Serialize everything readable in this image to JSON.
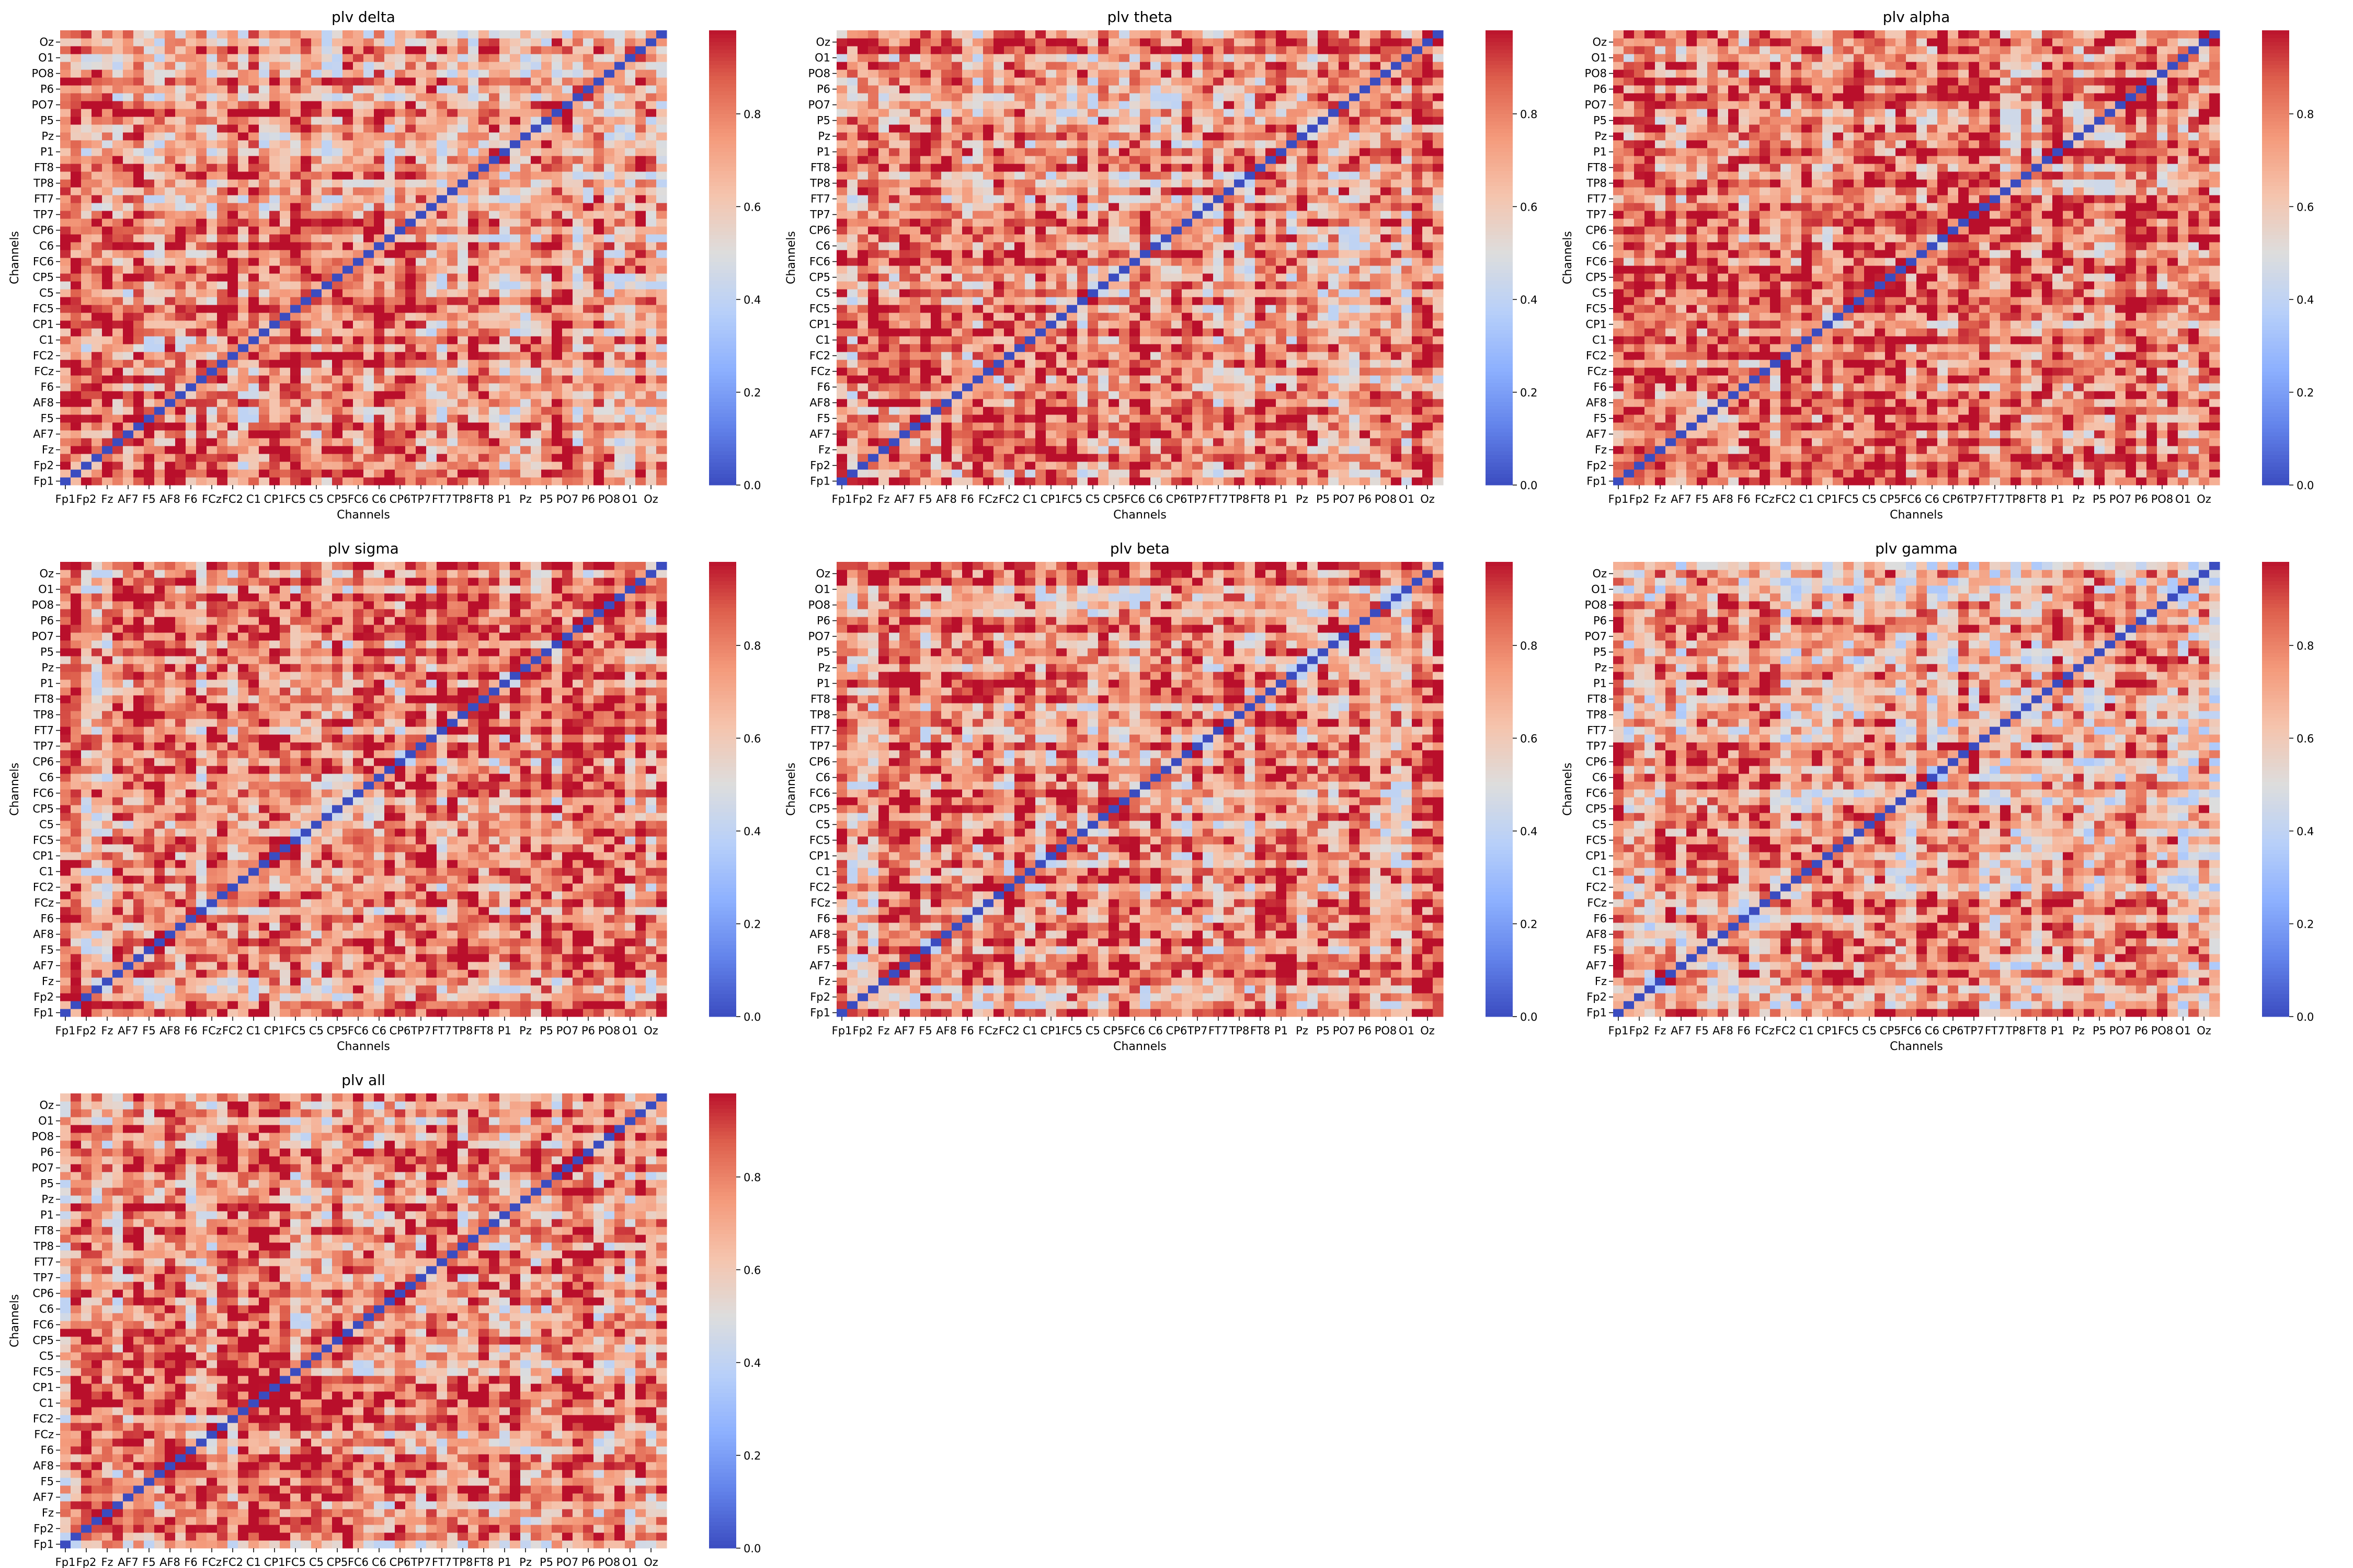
{
  "figure": {
    "background": "#ffffff"
  },
  "chart_data": [
    {
      "type": "heatmap",
      "title": "plv delta",
      "xlabel": "Channels",
      "ylabel": "Channels",
      "x_tick_labels": [
        "Fp1",
        "Fp2",
        "Fz",
        "AF7",
        "F5",
        "AF8",
        "F6",
        "FCz",
        "FC2",
        "C1",
        "CP1",
        "FC5",
        "C5",
        "CP5",
        "FC6",
        "C6",
        "CP6",
        "TP7",
        "FT7",
        "TP8",
        "FT8",
        "P1",
        "Pz",
        "P5",
        "PO7",
        "P6",
        "PO8",
        "O1",
        "Oz"
      ],
      "y_tick_labels_bottom_to_top": [
        "Fp1",
        "Fp2",
        "Fz",
        "AF7",
        "F5",
        "AF8",
        "F6",
        "FCz",
        "FC2",
        "C1",
        "CP1",
        "FC5",
        "C5",
        "CP5",
        "FC6",
        "C6",
        "CP6",
        "TP7",
        "FT7",
        "TP8",
        "FT8",
        "P1",
        "Pz",
        "P5",
        "PO7",
        "P6",
        "PO8",
        "O1",
        "Oz"
      ],
      "diagonal_value": 0.0,
      "typical_offdiagonal_range": [
        0.4,
        0.98
      ],
      "mean_offdiagonal": 0.72,
      "colorbar": {
        "colormap": "coolwarm",
        "vmin": 0.0,
        "vmax": 1.0,
        "ticks": [
          "0.0",
          "0.2",
          "0.4",
          "0.6",
          "0.8"
        ]
      }
    },
    {
      "type": "heatmap",
      "title": "plv theta",
      "xlabel": "Channels",
      "ylabel": "Channels",
      "x_tick_labels": [
        "Fp1",
        "Fp2",
        "Fz",
        "AF7",
        "F5",
        "AF8",
        "F6",
        "FCz",
        "FC2",
        "C1",
        "CP1",
        "FC5",
        "C5",
        "CP5",
        "FC6",
        "C6",
        "CP6",
        "TP7",
        "FT7",
        "TP8",
        "FT8",
        "P1",
        "Pz",
        "P5",
        "PO7",
        "P6",
        "PO8",
        "O1",
        "Oz"
      ],
      "y_tick_labels_bottom_to_top": [
        "Fp1",
        "Fp2",
        "Fz",
        "AF7",
        "F5",
        "AF8",
        "F6",
        "FCz",
        "FC2",
        "C1",
        "CP1",
        "FC5",
        "C5",
        "CP5",
        "FC6",
        "C6",
        "CP6",
        "TP7",
        "FT7",
        "TP8",
        "FT8",
        "P1",
        "Pz",
        "P5",
        "PO7",
        "P6",
        "PO8",
        "O1",
        "Oz"
      ],
      "diagonal_value": 0.0,
      "typical_offdiagonal_range": [
        0.4,
        0.98
      ],
      "mean_offdiagonal": 0.73,
      "colorbar": {
        "colormap": "coolwarm",
        "vmin": 0.0,
        "vmax": 1.0,
        "ticks": [
          "0.0",
          "0.2",
          "0.4",
          "0.6",
          "0.8"
        ]
      }
    },
    {
      "type": "heatmap",
      "title": "plv alpha",
      "xlabel": "Channels",
      "ylabel": "Channels",
      "x_tick_labels": [
        "Fp1",
        "Fp2",
        "Fz",
        "AF7",
        "F5",
        "AF8",
        "F6",
        "FCz",
        "FC2",
        "C1",
        "CP1",
        "FC5",
        "C5",
        "CP5",
        "FC6",
        "C6",
        "CP6",
        "TP7",
        "FT7",
        "TP8",
        "FT8",
        "P1",
        "Pz",
        "P5",
        "PO7",
        "P6",
        "PO8",
        "O1",
        "Oz"
      ],
      "y_tick_labels_bottom_to_top": [
        "Fp1",
        "Fp2",
        "Fz",
        "AF7",
        "F5",
        "AF8",
        "F6",
        "FCz",
        "FC2",
        "C1",
        "CP1",
        "FC5",
        "C5",
        "CP5",
        "FC6",
        "C6",
        "CP6",
        "TP7",
        "FT7",
        "TP8",
        "FT8",
        "P1",
        "Pz",
        "P5",
        "PO7",
        "P6",
        "PO8",
        "O1",
        "Oz"
      ],
      "diagonal_value": 0.0,
      "typical_offdiagonal_range": [
        0.45,
        0.98
      ],
      "mean_offdiagonal": 0.77,
      "colorbar": {
        "colormap": "coolwarm",
        "vmin": 0.0,
        "vmax": 1.0,
        "ticks": [
          "0.0",
          "0.2",
          "0.4",
          "0.6",
          "0.8"
        ]
      }
    },
    {
      "type": "heatmap",
      "title": "plv sigma",
      "xlabel": "Channels",
      "ylabel": "Channels",
      "x_tick_labels": [
        "Fp1",
        "Fp2",
        "Fz",
        "AF7",
        "F5",
        "AF8",
        "F6",
        "FCz",
        "FC2",
        "C1",
        "CP1",
        "FC5",
        "C5",
        "CP5",
        "FC6",
        "C6",
        "CP6",
        "TP7",
        "FT7",
        "TP8",
        "FT8",
        "P1",
        "Pz",
        "P5",
        "PO7",
        "P6",
        "PO8",
        "O1",
        "Oz"
      ],
      "y_tick_labels_bottom_to_top": [
        "Fp1",
        "Fp2",
        "Fz",
        "AF7",
        "F5",
        "AF8",
        "F6",
        "FCz",
        "FC2",
        "C1",
        "CP1",
        "FC5",
        "C5",
        "CP5",
        "FC6",
        "C6",
        "CP6",
        "TP7",
        "FT7",
        "TP8",
        "FT8",
        "P1",
        "Pz",
        "P5",
        "PO7",
        "P6",
        "PO8",
        "O1",
        "Oz"
      ],
      "diagonal_value": 0.0,
      "typical_offdiagonal_range": [
        0.4,
        0.98
      ],
      "mean_offdiagonal": 0.74,
      "colorbar": {
        "colormap": "coolwarm",
        "vmin": 0.0,
        "vmax": 1.0,
        "ticks": [
          "0.0",
          "0.2",
          "0.4",
          "0.6",
          "0.8"
        ]
      }
    },
    {
      "type": "heatmap",
      "title": "plv beta",
      "xlabel": "Channels",
      "ylabel": "Channels",
      "x_tick_labels": [
        "Fp1",
        "Fp2",
        "Fz",
        "AF7",
        "F5",
        "AF8",
        "F6",
        "FCz",
        "FC2",
        "C1",
        "CP1",
        "FC5",
        "C5",
        "CP5",
        "FC6",
        "C6",
        "CP6",
        "TP7",
        "FT7",
        "TP8",
        "FT8",
        "P1",
        "Pz",
        "P5",
        "PO7",
        "P6",
        "PO8",
        "O1",
        "Oz"
      ],
      "y_tick_labels_bottom_to_top": [
        "Fp1",
        "Fp2",
        "Fz",
        "AF7",
        "F5",
        "AF8",
        "F6",
        "FCz",
        "FC2",
        "C1",
        "CP1",
        "FC5",
        "C5",
        "CP5",
        "FC6",
        "C6",
        "CP6",
        "TP7",
        "FT7",
        "TP8",
        "FT8",
        "P1",
        "Pz",
        "P5",
        "PO7",
        "P6",
        "PO8",
        "O1",
        "Oz"
      ],
      "diagonal_value": 0.0,
      "typical_offdiagonal_range": [
        0.4,
        0.98
      ],
      "mean_offdiagonal": 0.73,
      "colorbar": {
        "colormap": "coolwarm",
        "vmin": 0.0,
        "vmax": 1.0,
        "ticks": [
          "0.0",
          "0.2",
          "0.4",
          "0.6",
          "0.8"
        ]
      }
    },
    {
      "type": "heatmap",
      "title": "plv gamma",
      "xlabel": "Channels",
      "ylabel": "Channels",
      "x_tick_labels": [
        "Fp1",
        "Fp2",
        "Fz",
        "AF7",
        "F5",
        "AF8",
        "F6",
        "FCz",
        "FC2",
        "C1",
        "CP1",
        "FC5",
        "C5",
        "CP5",
        "FC6",
        "C6",
        "CP6",
        "TP7",
        "FT7",
        "TP8",
        "FT8",
        "P1",
        "Pz",
        "P5",
        "PO7",
        "P6",
        "PO8",
        "O1",
        "Oz"
      ],
      "y_tick_labels_bottom_to_top": [
        "Fp1",
        "Fp2",
        "Fz",
        "AF7",
        "F5",
        "AF8",
        "F6",
        "FCz",
        "FC2",
        "C1",
        "CP1",
        "FC5",
        "C5",
        "CP5",
        "FC6",
        "C6",
        "CP6",
        "TP7",
        "FT7",
        "TP8",
        "FT8",
        "P1",
        "Pz",
        "P5",
        "PO7",
        "P6",
        "PO8",
        "O1",
        "Oz"
      ],
      "diagonal_value": 0.0,
      "typical_offdiagonal_range": [
        0.35,
        0.98
      ],
      "mean_offdiagonal": 0.66,
      "colorbar": {
        "colormap": "coolwarm",
        "vmin": 0.0,
        "vmax": 1.0,
        "ticks": [
          "0.0",
          "0.2",
          "0.4",
          "0.6",
          "0.8"
        ]
      }
    },
    {
      "type": "heatmap",
      "title": "plv all",
      "xlabel": "Channels",
      "ylabel": "Channels",
      "x_tick_labels": [
        "Fp1",
        "Fp2",
        "Fz",
        "AF7",
        "F5",
        "AF8",
        "F6",
        "FCz",
        "FC2",
        "C1",
        "CP1",
        "FC5",
        "C5",
        "CP5",
        "FC6",
        "C6",
        "CP6",
        "TP7",
        "FT7",
        "TP8",
        "FT8",
        "P1",
        "Pz",
        "P5",
        "PO7",
        "P6",
        "PO8",
        "O1",
        "Oz"
      ],
      "y_tick_labels_bottom_to_top": [
        "Fp1",
        "Fp2",
        "Fz",
        "AF7",
        "F5",
        "AF8",
        "F6",
        "FCz",
        "FC2",
        "C1",
        "CP1",
        "FC5",
        "C5",
        "CP5",
        "FC6",
        "C6",
        "CP6",
        "TP7",
        "FT7",
        "TP8",
        "FT8",
        "P1",
        "Pz",
        "P5",
        "PO7",
        "P6",
        "PO8",
        "O1",
        "Oz"
      ],
      "diagonal_value": 0.0,
      "typical_offdiagonal_range": [
        0.4,
        0.98
      ],
      "mean_offdiagonal": 0.74,
      "colorbar": {
        "colormap": "coolwarm",
        "vmin": 0.0,
        "vmax": 1.0,
        "ticks": [
          "0.0",
          "0.2",
          "0.4",
          "0.6",
          "0.8"
        ]
      }
    }
  ]
}
